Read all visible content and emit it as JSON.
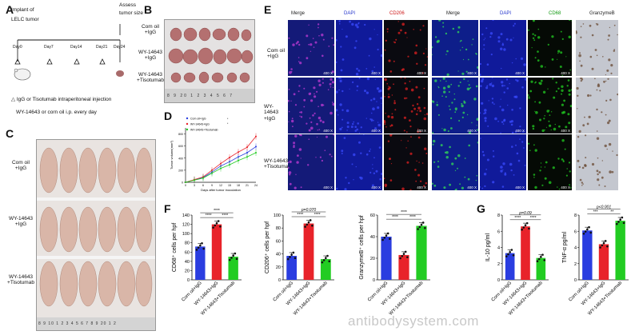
{
  "panels": {
    "A": {
      "label": "A",
      "implant_line1": "Implant of",
      "implant_line2": "LELC tumor",
      "assess_line1": "Assess",
      "assess_line2": "tumor size",
      "days": [
        "Day0",
        "Day7",
        "Day14",
        "Day21",
        "Day24"
      ],
      "legend_injection": "IgG or Tisotumab intraperitoneal injection",
      "legend_oral": "WY-14643 or corn oil i.p. every day"
    },
    "B": {
      "label": "B",
      "rows": [
        [
          "Com oil",
          "+IgG"
        ],
        [
          "WY-14643",
          "+IgG"
        ],
        [
          "WY-14643",
          "+Tisotumab"
        ]
      ],
      "ruler": "8 9 20 1 2 3 4 5 6 7"
    },
    "C": {
      "label": "C",
      "rows": [
        [
          "Com oil",
          "+IgG"
        ],
        [
          "WY-14643",
          "+IgG"
        ],
        [
          "WY-14643",
          "+Tisotumab"
        ]
      ],
      "ruler": "8 9 10 1 2 3 4 5 6 7 8 9 20 1 2"
    },
    "D": {
      "label": "D",
      "legend": [
        "Com oil+IgG",
        "WY-14643+IgG",
        "WY-14643+Tisotumab"
      ],
      "sig": [
        "*",
        "*"
      ]
    },
    "E": {
      "label": "E",
      "headers": [
        "Merge",
        "DAPI",
        "CD206",
        "Merge",
        "DAPI",
        "CD68",
        "GranzymeB"
      ],
      "header_colors": [
        "#222222",
        "#2233cc",
        "#cc1111",
        "#222222",
        "#2233cc",
        "#119911",
        "#222222"
      ],
      "rows": [
        [
          "Com oil",
          "+IgG"
        ],
        [
          "WY-14643",
          "+IgG"
        ],
        [
          "WY-14643",
          "+Tisotumab"
        ]
      ],
      "magnification": "400 X"
    },
    "F": {
      "label": "F"
    },
    "G": {
      "label": "G"
    }
  },
  "watermark": "antibodysystem.com",
  "colors": {
    "corn": "#2a3de0",
    "wy": "#e8232a",
    "tiso": "#22cc22"
  },
  "chart_data": [
    {
      "id": "D",
      "type": "line",
      "xlabel": "Days after tumor inoculation",
      "ylabel": "Tumor volume(mm³)",
      "x": [
        0,
        3,
        6,
        9,
        12,
        15,
        18,
        21,
        24
      ],
      "ylim": [
        0,
        900
      ],
      "series": [
        {
          "name": "Com oil+IgG",
          "values": [
            0,
            40,
            80,
            170,
            270,
            340,
            420,
            490,
            590
          ]
        },
        {
          "name": "WY-14643+IgG",
          "values": [
            0,
            45,
            90,
            200,
            310,
            410,
            500,
            580,
            760
          ]
        },
        {
          "name": "WY-14643+Tisotumab",
          "values": [
            0,
            35,
            70,
            150,
            230,
            290,
            360,
            420,
            490
          ]
        }
      ]
    },
    {
      "id": "F1",
      "type": "bar",
      "ylabel": "CD68⁺ cells per hpf",
      "categories": [
        "Corn oil+IgG",
        "WY-14643+IgG",
        "WY-14643+Tisotumab"
      ],
      "values": [
        72,
        120,
        50
      ],
      "yticks": [
        0,
        20,
        40,
        60,
        80,
        100,
        120,
        140
      ],
      "ylim": [
        0,
        140
      ],
      "sig_top": "****",
      "sig_left": "****",
      "sig_right": "****",
      "p_text": ""
    },
    {
      "id": "F2",
      "type": "bar",
      "ylabel": "CD206⁺ cells per hpf",
      "categories": [
        "Corn oil+IgG",
        "WY-14643+IgG",
        "WY-14643+Tisotumab"
      ],
      "values": [
        37,
        87,
        32
      ],
      "yticks": [
        0,
        20,
        40,
        60,
        80,
        100
      ],
      "ylim": [
        0,
        100
      ],
      "sig_top": "",
      "sig_left": "****",
      "sig_right": "****",
      "p_text": "p=0.070"
    },
    {
      "id": "F3",
      "type": "bar",
      "ylabel": "GranzymeB⁺ cells per hpf",
      "categories": [
        "Corn oil+IgG",
        "WY-14643+IgG",
        "WY-14643+Tisotumab"
      ],
      "values": [
        40,
        23,
        50
      ],
      "yticks": [
        0,
        20,
        40,
        60
      ],
      "ylim": [
        0,
        60
      ],
      "sig_top": "****",
      "sig_left": "****",
      "sig_right": "****",
      "p_text": ""
    },
    {
      "id": "G1",
      "type": "bar",
      "ylabel": "IL-10 pg/ml",
      "categories": [
        "Corn oil+IgG",
        "WY-14643+IgG",
        "WY-14643+Tisotumab"
      ],
      "values": [
        3.3,
        6.6,
        2.7
      ],
      "yticks": [
        0,
        2,
        4,
        6,
        8
      ],
      "ylim": [
        0,
        8
      ],
      "sig_top": "",
      "sig_left": "****",
      "sig_right": "****",
      "p_text": "p=0.09"
    },
    {
      "id": "G2",
      "type": "bar",
      "ylabel": "TNF-α pg/ml",
      "categories": [
        "Corn oil+IgG",
        "WY-14643+IgG",
        "WY-14643+Tisotumab"
      ],
      "values": [
        6.1,
        4.4,
        7.3
      ],
      "yticks": [
        0,
        2,
        4,
        6,
        8
      ],
      "ylim": [
        0,
        8
      ],
      "sig_top": "",
      "sig_left": "***",
      "sig_right": "**",
      "p_text": "p<0.001"
    }
  ]
}
